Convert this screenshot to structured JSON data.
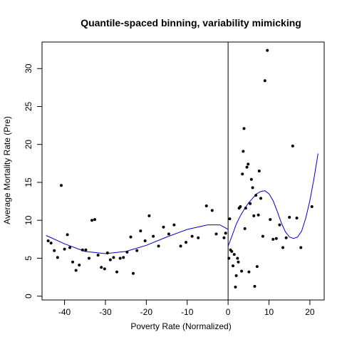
{
  "chart_data": {
    "type": "scatter",
    "title": "Quantile-spaced binning, variability mimicking",
    "xlabel": "Poverty Rate (Normalized)",
    "ylabel": "Average Mortality Rate (Pre)",
    "xlim": [
      -45.5,
      23.5
    ],
    "ylim": [
      -0.5,
      33.5
    ],
    "x_ticks": [
      -40,
      -30,
      -20,
      -10,
      0,
      10,
      20
    ],
    "y_ticks": [
      0,
      5,
      10,
      15,
      20,
      25,
      30
    ],
    "cutoff_x": 0,
    "points": [
      [
        -44.0,
        7.3
      ],
      [
        -43.3,
        7.0
      ],
      [
        -42.5,
        6.0
      ],
      [
        -41.7,
        5.1
      ],
      [
        -40.8,
        14.6
      ],
      [
        -40.0,
        6.2
      ],
      [
        -39.3,
        8.1
      ],
      [
        -38.7,
        6.4
      ],
      [
        -38.0,
        4.5
      ],
      [
        -37.2,
        3.4
      ],
      [
        -36.4,
        4.1
      ],
      [
        -35.6,
        6.1
      ],
      [
        -34.8,
        6.1
      ],
      [
        -34.0,
        5.0
      ],
      [
        -33.3,
        10.0
      ],
      [
        -32.6,
        10.1
      ],
      [
        -31.8,
        5.4
      ],
      [
        -31.0,
        3.8
      ],
      [
        -30.2,
        3.6
      ],
      [
        -29.5,
        5.7
      ],
      [
        -28.8,
        4.8
      ],
      [
        -28.0,
        5.1
      ],
      [
        -27.2,
        3.2
      ],
      [
        -26.4,
        5.0
      ],
      [
        -25.6,
        5.1
      ],
      [
        -24.7,
        5.8
      ],
      [
        -23.8,
        7.8
      ],
      [
        -23.2,
        3.0
      ],
      [
        -22.3,
        6.0
      ],
      [
        -21.4,
        8.6
      ],
      [
        -20.3,
        7.3
      ],
      [
        -19.3,
        10.6
      ],
      [
        -18.3,
        7.9
      ],
      [
        -17.0,
        6.6
      ],
      [
        -15.8,
        9.1
      ],
      [
        -14.5,
        8.2
      ],
      [
        -13.2,
        9.4
      ],
      [
        -11.6,
        6.6
      ],
      [
        -10.3,
        7.1
      ],
      [
        -8.8,
        7.9
      ],
      [
        -7.3,
        7.7
      ],
      [
        -5.3,
        11.9
      ],
      [
        -3.9,
        11.3
      ],
      [
        -2.9,
        8.2
      ],
      [
        -1.0,
        7.7
      ],
      [
        -0.6,
        8.3
      ],
      [
        0.2,
        5.0
      ],
      [
        0.4,
        10.2
      ],
      [
        0.6,
        6.1
      ],
      [
        0.9,
        5.9
      ],
      [
        1.2,
        4.0
      ],
      [
        1.5,
        5.5
      ],
      [
        1.8,
        1.2
      ],
      [
        2.0,
        2.7
      ],
      [
        2.3,
        5.0
      ],
      [
        2.5,
        4.5
      ],
      [
        2.7,
        11.6
      ],
      [
        3.0,
        11.8
      ],
      [
        3.3,
        3.3
      ],
      [
        3.5,
        16.1
      ],
      [
        3.7,
        19.1
      ],
      [
        3.9,
        22.1
      ],
      [
        4.1,
        8.9
      ],
      [
        4.3,
        11.6
      ],
      [
        4.6,
        17.0
      ],
      [
        4.9,
        17.4
      ],
      [
        5.1,
        3.2
      ],
      [
        5.4,
        12.2
      ],
      [
        5.7,
        15.4
      ],
      [
        6.0,
        14.3
      ],
      [
        6.3,
        10.6
      ],
      [
        6.5,
        1.3
      ],
      [
        6.8,
        13.3
      ],
      [
        7.1,
        3.9
      ],
      [
        7.4,
        10.7
      ],
      [
        7.6,
        16.5
      ],
      [
        8.0,
        12.9
      ],
      [
        8.5,
        7.9
      ],
      [
        9.0,
        28.4
      ],
      [
        9.6,
        32.4
      ],
      [
        10.3,
        10.1
      ],
      [
        11.0,
        7.5
      ],
      [
        11.8,
        7.6
      ],
      [
        12.6,
        9.4
      ],
      [
        13.4,
        6.4
      ],
      [
        14.2,
        7.7
      ],
      [
        15.0,
        10.4
      ],
      [
        15.8,
        19.8
      ],
      [
        16.8,
        10.3
      ],
      [
        17.8,
        6.4
      ],
      [
        20.5,
        11.8
      ]
    ],
    "fit_left": [
      [
        -44.5,
        8.0
      ],
      [
        -40,
        6.9
      ],
      [
        -35,
        5.9
      ],
      [
        -30,
        5.6
      ],
      [
        -25,
        5.9
      ],
      [
        -20,
        6.7
      ],
      [
        -15,
        7.8
      ],
      [
        -10,
        8.8
      ],
      [
        -5,
        9.4
      ],
      [
        -2,
        9.4
      ],
      [
        0,
        8.8
      ]
    ],
    "fit_right": [
      [
        0,
        6.6
      ],
      [
        1,
        8.0
      ],
      [
        2,
        9.5
      ],
      [
        3,
        10.6
      ],
      [
        4,
        11.5
      ],
      [
        5,
        12.3
      ],
      [
        6,
        12.9
      ],
      [
        7,
        13.5
      ],
      [
        8,
        13.8
      ],
      [
        9,
        13.9
      ],
      [
        10,
        13.5
      ],
      [
        11,
        12.6
      ],
      [
        12,
        11.2
      ],
      [
        13,
        9.7
      ],
      [
        14,
        8.5
      ],
      [
        15,
        7.8
      ],
      [
        16,
        7.6
      ],
      [
        17,
        7.8
      ],
      [
        18,
        8.6
      ],
      [
        19,
        10.3
      ],
      [
        20,
        12.6
      ],
      [
        21,
        15.5
      ],
      [
        22,
        18.8
      ]
    ]
  }
}
